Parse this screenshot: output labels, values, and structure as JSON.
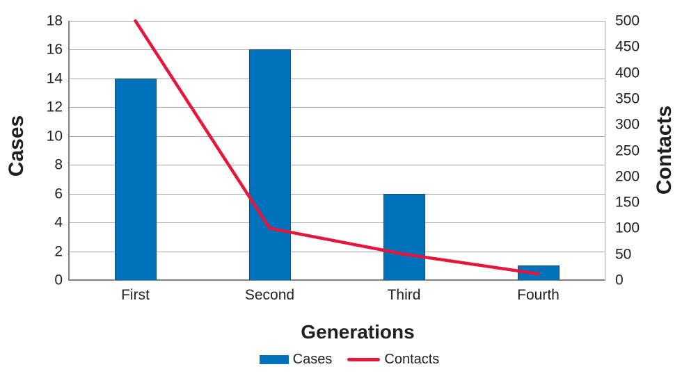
{
  "chart_data": {
    "type": "bar",
    "subtype": "combo-bar-line-dual-axis",
    "categories": [
      "First",
      "Second",
      "Third",
      "Fourth"
    ],
    "series": [
      {
        "name": "Cases",
        "type": "bar",
        "axis": "left",
        "values": [
          14,
          16,
          6,
          1
        ],
        "color": "#0072bc"
      },
      {
        "name": "Contacts",
        "type": "line",
        "axis": "right",
        "values": [
          500,
          100,
          50,
          12
        ],
        "color": "#e8153a"
      }
    ],
    "title": "",
    "xlabel": "Generations",
    "left_axis": {
      "label": "Cases",
      "min": 0,
      "max": 18,
      "step": 2,
      "ticks": [
        0,
        2,
        4,
        6,
        8,
        10,
        12,
        14,
        16,
        18
      ]
    },
    "right_axis": {
      "label": "Contacts",
      "min": 0,
      "max": 500,
      "step": 50,
      "ticks": [
        0,
        50,
        100,
        150,
        200,
        250,
        300,
        350,
        400,
        450,
        500
      ]
    },
    "grid": true,
    "legend_position": "bottom",
    "colors": {
      "bar_fill": "#0072bc",
      "bar_border": "#1b4b72",
      "line": "#e8153a",
      "gridline": "#a8a8a8",
      "axis_line": "#7f7f7f",
      "text": "#1f1f1f",
      "background": "#ffffff"
    }
  }
}
